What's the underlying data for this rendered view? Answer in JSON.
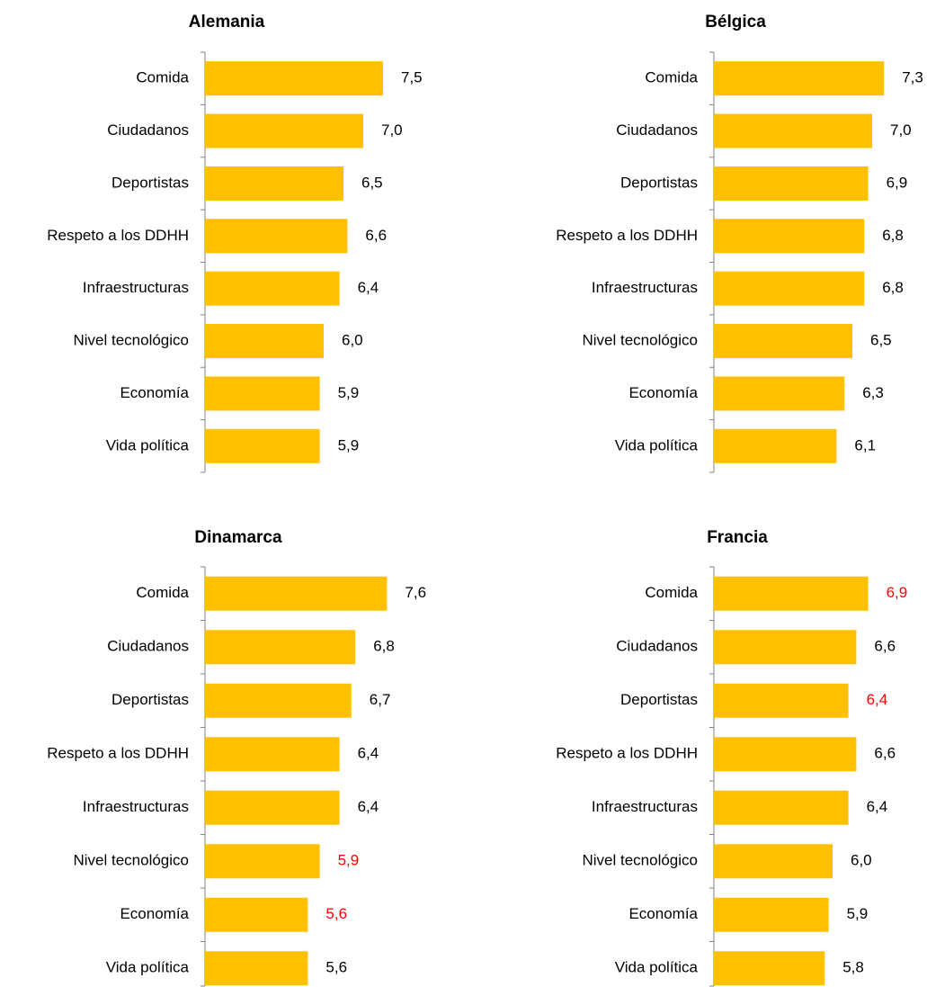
{
  "chart_data": [
    {
      "type": "bar",
      "orientation": "horizontal",
      "title": "Alemania",
      "categories": [
        "Comida",
        "Ciudadanos",
        "Deportistas",
        "Respeto a los DDHH",
        "Infraestructuras",
        "Nivel tecnológico",
        "Economía",
        "Vida política"
      ],
      "values": [
        7.5,
        7.0,
        6.5,
        6.6,
        6.4,
        6.0,
        5.9,
        5.9
      ],
      "value_labels": [
        "7,5",
        "7,0",
        "6,5",
        "6,6",
        "6,4",
        "6,0",
        "5,9",
        "5,9"
      ],
      "label_colors": [
        "#000000",
        "#000000",
        "#000000",
        "#000000",
        "#000000",
        "#000000",
        "#000000",
        "#000000"
      ],
      "color": "#FFC000",
      "xlim": [
        3,
        8
      ]
    },
    {
      "type": "bar",
      "orientation": "horizontal",
      "title": "Bélgica",
      "categories": [
        "Comida",
        "Ciudadanos",
        "Deportistas",
        "Respeto a los DDHH",
        "Infraestructuras",
        "Nivel tecnológico",
        "Economía",
        "Vida política"
      ],
      "values": [
        7.3,
        7.0,
        6.9,
        6.8,
        6.8,
        6.5,
        6.3,
        6.1
      ],
      "value_labels": [
        "7,3",
        "7,0",
        "6,9",
        "6,8",
        "6,8",
        "6,5",
        "6,3",
        "6,1"
      ],
      "label_colors": [
        "#000000",
        "#000000",
        "#000000",
        "#000000",
        "#000000",
        "#000000",
        "#000000",
        "#000000"
      ],
      "color": "#FFC000",
      "xlim": [
        3,
        8
      ]
    },
    {
      "type": "bar",
      "orientation": "horizontal",
      "title": "Dinamarca",
      "categories": [
        "Comida",
        "Ciudadanos",
        "Deportistas",
        "Respeto a los DDHH",
        "Infraestructuras",
        "Nivel tecnológico",
        "Economía",
        "Vida política"
      ],
      "values": [
        7.6,
        6.8,
        6.7,
        6.4,
        6.4,
        5.9,
        5.6,
        5.6
      ],
      "value_labels": [
        "7,6",
        "6,8",
        "6,7",
        "6,4",
        "6,4",
        "5,9",
        "5,6",
        "5,6"
      ],
      "label_colors": [
        "#000000",
        "#000000",
        "#000000",
        "#000000",
        "#000000",
        "#FF0000",
        "#FF0000",
        "#000000"
      ],
      "color": "#FFC000",
      "xlim": [
        3,
        8
      ]
    },
    {
      "type": "bar",
      "orientation": "horizontal",
      "title": "Francia",
      "categories": [
        "Comida",
        "Ciudadanos",
        "Deportistas",
        "Respeto a los DDHH",
        "Infraestructuras",
        "Nivel tecnológico",
        "Economía",
        "Vida política"
      ],
      "values": [
        6.9,
        6.6,
        6.4,
        6.6,
        6.4,
        6.0,
        5.9,
        5.8
      ],
      "value_labels": [
        "6,9",
        "6,6",
        "6,4",
        "6,6",
        "6,4",
        "6,0",
        "5,9",
        "5,8"
      ],
      "label_colors": [
        "#FF0000",
        "#000000",
        "#FF0000",
        "#000000",
        "#000000",
        "#000000",
        "#000000",
        "#000000"
      ],
      "color": "#FFC000",
      "xlim": [
        3,
        8
      ]
    }
  ]
}
